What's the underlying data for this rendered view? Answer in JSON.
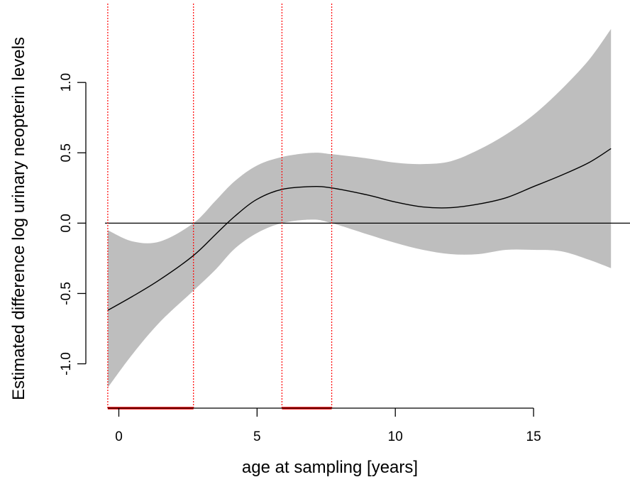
{
  "chart_data": {
    "type": "line",
    "title": "",
    "xlabel": "age at sampling [years]",
    "ylabel": "Estimated difference log urinary neopterin levels",
    "xlim": [
      -0.5,
      18
    ],
    "ylim": [
      -1.3,
      1.45
    ],
    "x_ticks": [
      0,
      5,
      10,
      15
    ],
    "x_tick_labels": [
      "0",
      "5",
      "10",
      "15"
    ],
    "y_ticks": [
      -1.0,
      -0.5,
      0.0,
      0.5,
      1.0
    ],
    "y_tick_labels": [
      "-1.0",
      "-0.5",
      "0.0",
      "0.5",
      "1.0"
    ],
    "grid": false,
    "series": [
      {
        "role": "estimate",
        "color": "#000000",
        "x": [
          -0.4,
          0.5,
          1.5,
          2.7,
          3.5,
          4.2,
          5.0,
          5.9,
          7.0,
          7.7,
          9.0,
          10.0,
          11.0,
          12.0,
          13.0,
          14.0,
          15.0,
          16.0,
          17.0,
          17.8
        ],
        "y": [
          -0.62,
          -0.52,
          -0.4,
          -0.23,
          -0.08,
          0.05,
          0.17,
          0.24,
          0.26,
          0.25,
          0.2,
          0.15,
          0.115,
          0.11,
          0.135,
          0.18,
          0.26,
          0.34,
          0.43,
          0.53
        ]
      }
    ],
    "confidence_band": {
      "color": "#bebebe",
      "x": [
        -0.4,
        0.5,
        1.5,
        2.7,
        3.5,
        4.2,
        5.0,
        5.9,
        7.0,
        7.7,
        9.0,
        10.0,
        11.0,
        12.0,
        13.0,
        14.0,
        15.0,
        16.0,
        17.0,
        17.8
      ],
      "lower": [
        -1.17,
        -0.93,
        -0.7,
        -0.48,
        -0.33,
        -0.18,
        -0.07,
        0.0,
        0.025,
        0.0,
        -0.08,
        -0.14,
        -0.19,
        -0.22,
        -0.22,
        -0.19,
        -0.19,
        -0.2,
        -0.26,
        -0.32
      ],
      "upper": [
        -0.05,
        -0.13,
        -0.13,
        0.0,
        0.16,
        0.3,
        0.41,
        0.47,
        0.5,
        0.49,
        0.46,
        0.43,
        0.42,
        0.44,
        0.52,
        0.63,
        0.77,
        0.95,
        1.16,
        1.38
      ]
    },
    "reference_line": {
      "y": 0.0,
      "color": "#000000"
    },
    "significant_intervals": [
      {
        "x_start": -0.4,
        "x_end": 2.7
      },
      {
        "x_start": 5.9,
        "x_end": 7.7
      }
    ],
    "highlight_color": "#ff0000"
  }
}
